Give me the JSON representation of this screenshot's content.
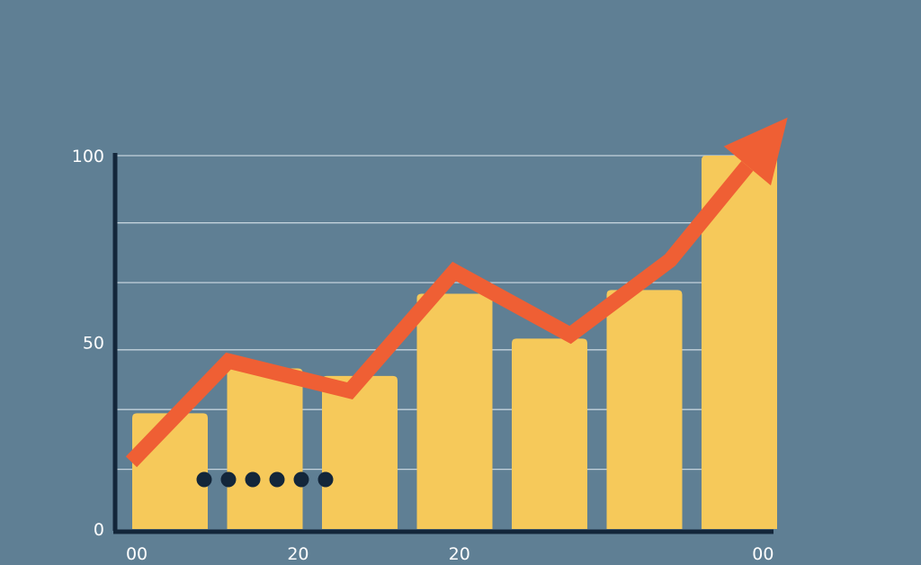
{
  "colors": {
    "background": "#5f7f94",
    "bar": "#f6c95a",
    "trend_line": "#ef5f34",
    "axis": "#13263a",
    "gridline": "#c3d2dc",
    "dots": "#13263a",
    "tick_text": "#ffffff"
  },
  "chart_data": {
    "type": "bar",
    "title": "",
    "xlabel": "",
    "ylabel": "",
    "ylim": [
      0,
      100
    ],
    "grid": true,
    "y_ticks": [
      {
        "value": 0,
        "label": "0"
      },
      {
        "value": 50,
        "label": "50"
      },
      {
        "value": 100,
        "label": "100"
      }
    ],
    "gridline_values": [
      16,
      32,
      48,
      66,
      82,
      100
    ],
    "x_tick_labels": [
      {
        "slot": 0,
        "label": "00"
      },
      {
        "slot": 1.7,
        "label": "20"
      },
      {
        "slot": 3.4,
        "label": "20"
      },
      {
        "slot": 6.6,
        "label": "00"
      }
    ],
    "series": [
      {
        "values": [
          31,
          43,
          41,
          63,
          51,
          64,
          100
        ]
      },
      {
        "type": "line",
        "values": [
          18,
          45,
          37,
          69,
          52,
          72,
          97,
          108
        ]
      }
    ],
    "dots_count": 6,
    "trend_arrow": true
  }
}
